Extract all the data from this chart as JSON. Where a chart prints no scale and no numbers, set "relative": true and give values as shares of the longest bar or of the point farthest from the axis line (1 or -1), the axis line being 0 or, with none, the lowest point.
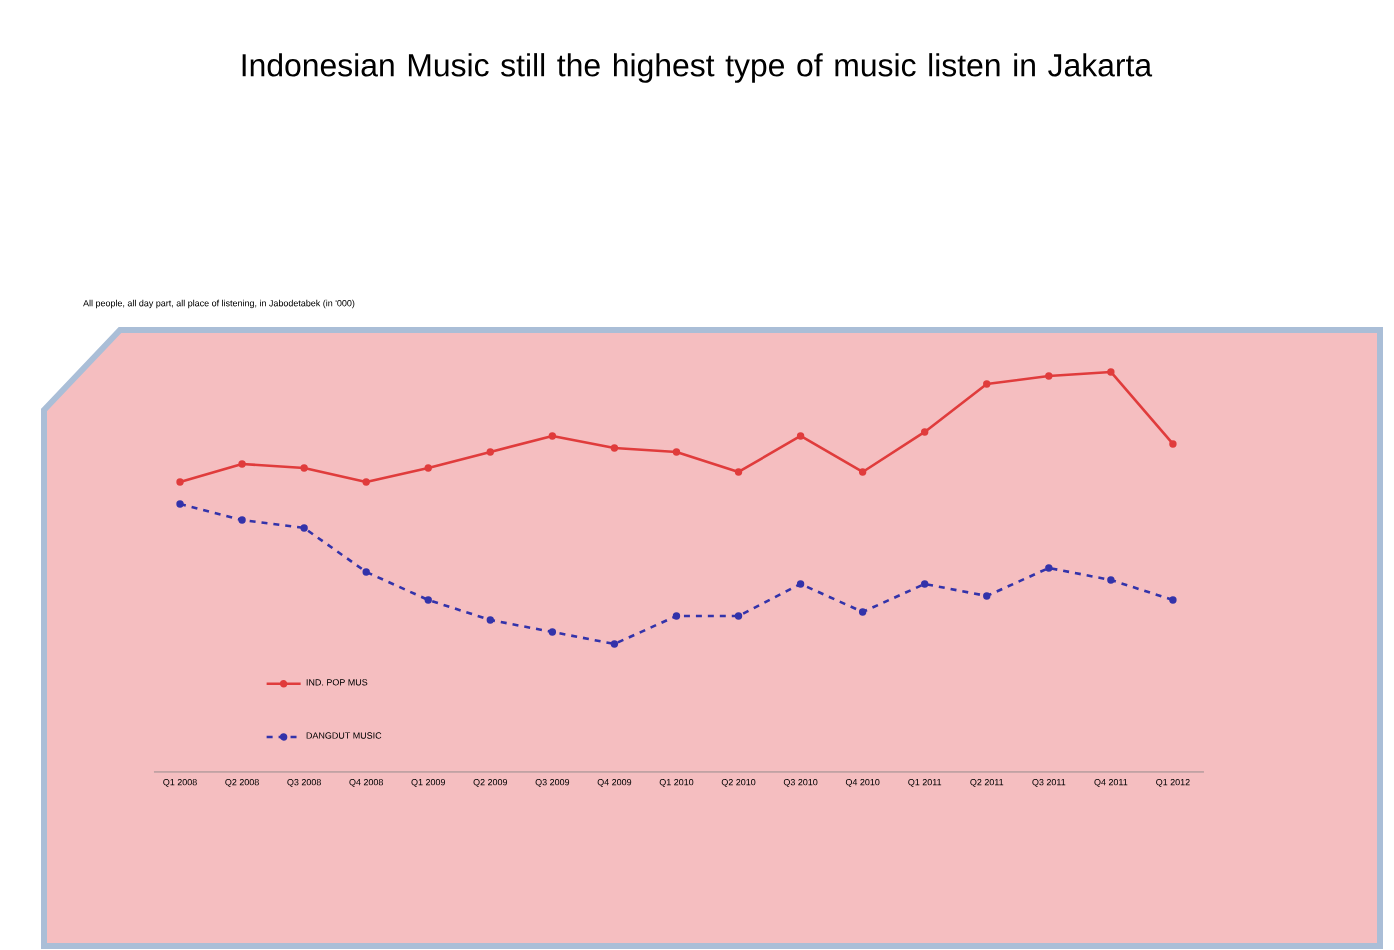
{
  "chart_data": {
    "type": "line",
    "title": "Indonesian Music still the highest type of music listen in Jakarta",
    "subtitle": "All people, all day part, all place of listening, in Jabodetabek (in '000)",
    "categories": [
      "Q1 2008",
      "Q2 2008",
      "Q3 2008",
      "Q4 2008",
      "Q1 2009",
      "Q2 2009",
      "Q3 2009",
      "Q4 2009",
      "Q1 2010",
      "Q2 2010",
      "Q3 2010",
      "Q4 2010",
      "Q1 2011",
      "Q2 2011",
      "Q3 2011",
      "Q4 2011",
      "Q1 2012"
    ],
    "relative": true,
    "series": [
      {
        "name": "IND. POP MUS",
        "color": "#e03c3c",
        "values": [
          0.725,
          0.77,
          0.76,
          0.725,
          0.76,
          0.8,
          0.84,
          0.81,
          0.8,
          0.75,
          0.84,
          0.75,
          0.85,
          0.97,
          0.99,
          1.0,
          0.82
        ]
      },
      {
        "name": "DANGDUT MUSIC",
        "color": "#3333aa",
        "line_style": "dashed",
        "values": [
          0.67,
          0.63,
          0.61,
          0.5,
          0.43,
          0.38,
          0.35,
          0.32,
          0.39,
          0.39,
          0.47,
          0.4,
          0.47,
          0.44,
          0.51,
          0.48,
          0.43
        ]
      }
    ],
    "marker": "circle",
    "legend": "left"
  }
}
